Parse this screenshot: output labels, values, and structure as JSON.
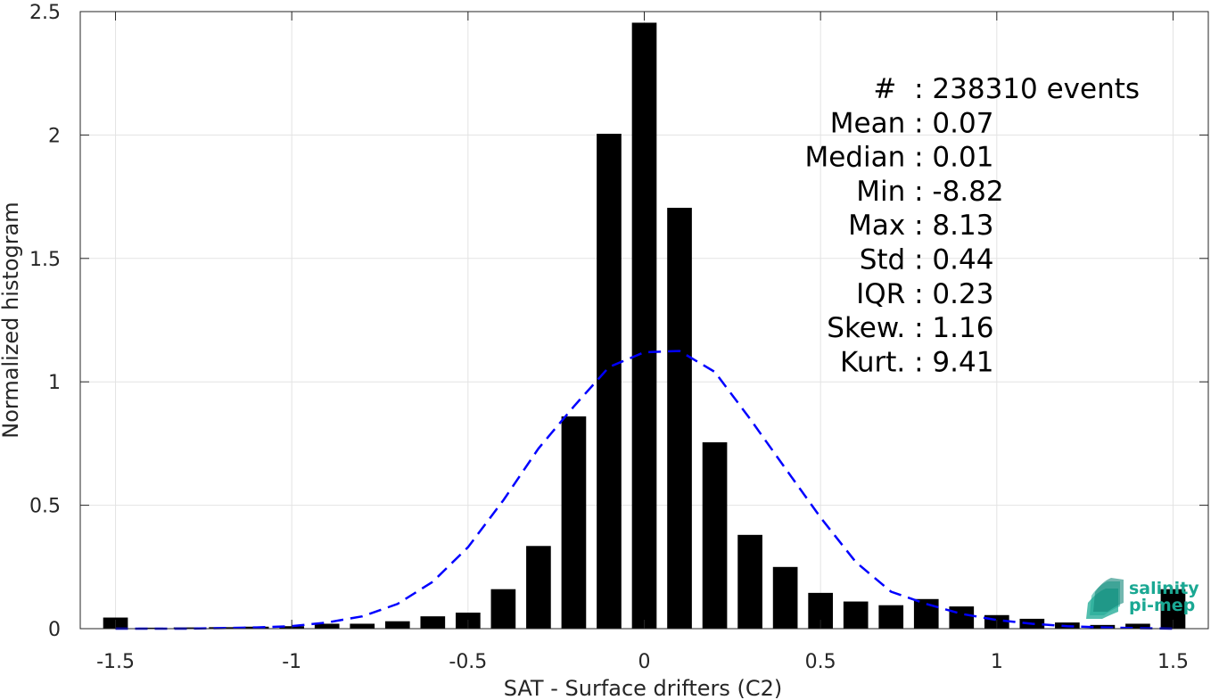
{
  "chart_data": {
    "type": "bar",
    "xlabel": "SAT - Surface drifters (C2)",
    "ylabel": "Normalized histogram",
    "xlim": [
      -1.6,
      1.6
    ],
    "ylim": [
      0,
      2.5
    ],
    "xticks": [
      -1.5,
      -1,
      -0.5,
      0,
      0.5,
      1,
      1.5
    ],
    "xtick_labels": [
      "-1.5",
      "-1",
      "-0.5",
      "0",
      "0.5",
      "1",
      "1.5"
    ],
    "yticks": [
      0,
      0.5,
      1,
      1.5,
      2,
      2.5
    ],
    "ytick_labels": [
      "0",
      "0.5",
      "1",
      "1.5",
      "2",
      "2.5"
    ],
    "grid": true,
    "bin_width": 0.1,
    "bars": {
      "x": [
        -1.5,
        -1.4,
        -1.3,
        -1.2,
        -1.1,
        -1.0,
        -0.9,
        -0.8,
        -0.7,
        -0.6,
        -0.5,
        -0.4,
        -0.3,
        -0.2,
        -0.1,
        0.0,
        0.1,
        0.2,
        0.3,
        0.4,
        0.5,
        0.6,
        0.7,
        0.8,
        0.9,
        1.0,
        1.1,
        1.2,
        1.3,
        1.4,
        1.5
      ],
      "values": [
        0.045,
        0.004,
        0.005,
        0.006,
        0.008,
        0.01,
        0.02,
        0.02,
        0.03,
        0.05,
        0.065,
        0.16,
        0.335,
        0.86,
        2.005,
        2.455,
        1.705,
        0.755,
        0.38,
        0.25,
        0.145,
        0.11,
        0.095,
        0.12,
        0.09,
        0.055,
        0.04,
        0.025,
        0.015,
        0.02,
        0.16
      ],
      "color": "#000000"
    },
    "fit_curve": {
      "style": "dashed",
      "color": "#0000ff",
      "x": [
        -1.5,
        -1.4,
        -1.3,
        -1.2,
        -1.1,
        -1.0,
        -0.9,
        -0.8,
        -0.7,
        -0.6,
        -0.5,
        -0.4,
        -0.3,
        -0.2,
        -0.1,
        0.0,
        0.1,
        0.2,
        0.3,
        0.4,
        0.5,
        0.6,
        0.7,
        0.8,
        0.9,
        1.0,
        1.1,
        1.2,
        1.3,
        1.4,
        1.5
      ],
      "y": [
        0.0,
        0.0,
        0.0,
        0.002,
        0.005,
        0.01,
        0.025,
        0.05,
        0.1,
        0.19,
        0.33,
        0.52,
        0.73,
        0.9,
        1.06,
        1.12,
        1.125,
        1.04,
        0.85,
        0.65,
        0.45,
        0.27,
        0.15,
        0.1,
        0.06,
        0.035,
        0.02,
        0.01,
        0.005,
        0.002,
        0.0
      ]
    },
    "annotations": [
      {
        "label": "#  ",
        "value": ": 238310 events"
      },
      {
        "label": "Mean ",
        "value": ": 0.07"
      },
      {
        "label": "Median ",
        "value": ": 0.01"
      },
      {
        "label": "Min ",
        "value": ": -8.82"
      },
      {
        "label": "Max ",
        "value": ": 8.13"
      },
      {
        "label": "Std ",
        "value": ": 0.44"
      },
      {
        "label": "IQR ",
        "value": ": 0.23"
      },
      {
        "label": "Skew. ",
        "value": ": 1.16"
      },
      {
        "label": "Kurt. ",
        "value": ": 9.41"
      }
    ],
    "logo": {
      "line1": "salinity",
      "line2": "pi-mep"
    }
  }
}
